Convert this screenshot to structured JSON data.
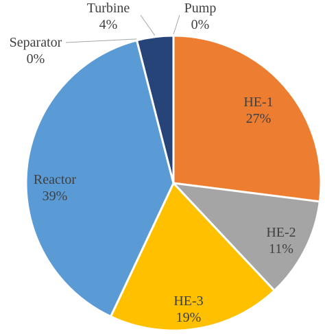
{
  "chart_data": {
    "type": "pie",
    "categories": [
      "HE-1",
      "HE-2",
      "HE-3",
      "Reactor",
      "Separator",
      "Turbine",
      "Pump"
    ],
    "values": [
      27,
      11,
      19,
      39,
      0,
      4,
      0
    ],
    "value_labels": [
      "27%",
      "11%",
      "19%",
      "39%",
      "0%",
      "4%",
      "0%"
    ],
    "colors": [
      "#ED7D31",
      "#A5A5A5",
      "#FFC000",
      "#5B9BD5",
      "#8FAADC",
      "#264478",
      "#A9D18E"
    ],
    "start_angle_deg": 0,
    "direction": "clockwise",
    "legend": "none",
    "label_color": "#404040",
    "slice_border_color": "#ffffff"
  }
}
